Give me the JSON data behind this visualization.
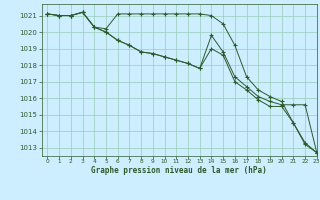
{
  "title": "Graphe pression niveau de la mer (hPa)",
  "background_color": "#cceeff",
  "grid_color": "#99ccbb",
  "line_color": "#2d5a2d",
  "marker_color": "#2d5a2d",
  "xlim": [
    -0.5,
    23
  ],
  "ylim": [
    1012.5,
    1021.7
  ],
  "yticks": [
    1013,
    1014,
    1015,
    1016,
    1017,
    1018,
    1019,
    1020,
    1021
  ],
  "xticks": [
    0,
    1,
    2,
    3,
    4,
    5,
    6,
    7,
    8,
    9,
    10,
    11,
    12,
    13,
    14,
    15,
    16,
    17,
    18,
    19,
    20,
    21,
    22,
    23
  ],
  "series": [
    [
      1021.1,
      1021.0,
      1021.0,
      1021.2,
      1020.3,
      1020.2,
      1021.1,
      1021.1,
      1021.1,
      1021.1,
      1021.1,
      1021.1,
      1021.1,
      1021.1,
      1021.0,
      1020.5,
      1019.2,
      1017.3,
      1016.5,
      1016.1,
      1015.8,
      1014.5,
      1013.3,
      1012.7
    ],
    [
      1021.1,
      1021.0,
      1021.0,
      1021.2,
      1020.3,
      1020.0,
      1019.5,
      1019.2,
      1018.8,
      1018.7,
      1018.5,
      1018.3,
      1018.1,
      1017.8,
      1019.8,
      1018.8,
      1017.3,
      1016.7,
      1016.1,
      1015.8,
      1015.6,
      1015.6,
      1015.6,
      1012.7
    ],
    [
      1021.1,
      1021.0,
      1021.0,
      1021.2,
      1020.3,
      1020.0,
      1019.5,
      1019.2,
      1018.8,
      1018.7,
      1018.5,
      1018.3,
      1018.1,
      1017.8,
      1019.0,
      1018.6,
      1017.0,
      1016.5,
      1015.9,
      1015.5,
      1015.5,
      1014.5,
      1013.2,
      1012.7
    ]
  ]
}
